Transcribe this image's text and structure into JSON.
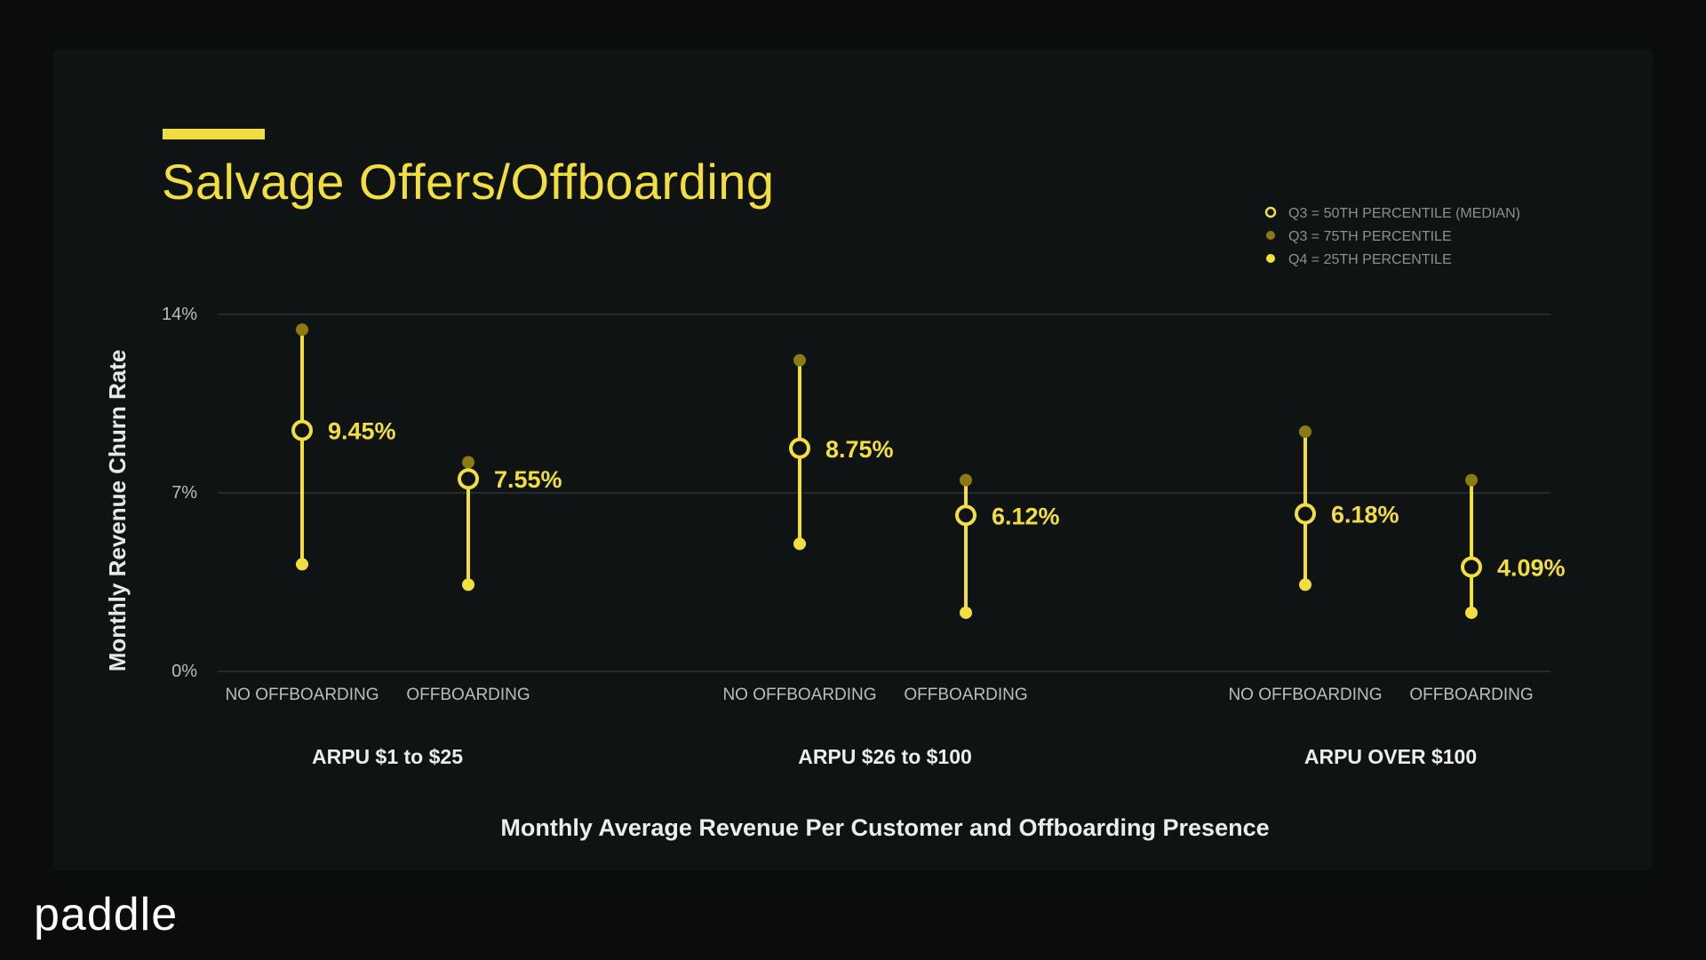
{
  "header": {
    "title": "Salvage Offers/Offboarding"
  },
  "brand": {
    "logo_text": "paddle"
  },
  "colors": {
    "accent": "#f2df3f",
    "q75": "#8c7a12",
    "grid": "#252a2a",
    "axis_text": "#bdbdbd",
    "background": "#0f1313"
  },
  "chart_data": {
    "type": "range-dot",
    "title": "Salvage Offers/Offboarding",
    "xlabel": "Monthly Average Revenue Per Customer and Offboarding Presence",
    "ylabel": "Monthly Revenue Churn Rate",
    "ylim": [
      0,
      14
    ],
    "yticks": [
      {
        "value": 0,
        "label": "0%"
      },
      {
        "value": 7,
        "label": "7%"
      },
      {
        "value": 14,
        "label": "14%"
      }
    ],
    "grid": true,
    "legend_position": "top-right",
    "legend": [
      {
        "label": "Q3 = 50TH PERCENTILE (MEDIAN)",
        "marker": "ring"
      },
      {
        "label": "Q3 = 75TH PERCENTILE",
        "marker": "dark-dot"
      },
      {
        "label": "Q4 = 25TH PERCENTILE",
        "marker": "dot"
      }
    ],
    "groups": [
      {
        "name": "ARPU $1 to $25",
        "items": [
          {
            "label": "NO OFFBOARDING",
            "median": 9.45,
            "median_label": "9.45%",
            "p75": 13.4,
            "p25": 4.2
          },
          {
            "label": "OFFBOARDING",
            "median": 7.55,
            "median_label": "7.55%",
            "p75": 8.2,
            "p25": 3.4
          }
        ]
      },
      {
        "name": "ARPU $26 to $100",
        "items": [
          {
            "label": "NO OFFBOARDING",
            "median": 8.75,
            "median_label": "8.75%",
            "p75": 12.2,
            "p25": 5.0
          },
          {
            "label": "OFFBOARDING",
            "median": 6.12,
            "median_label": "6.12%",
            "p75": 7.5,
            "p25": 2.3
          }
        ]
      },
      {
        "name": "ARPU OVER $100",
        "items": [
          {
            "label": "NO OFFBOARDING",
            "median": 6.18,
            "median_label": "6.18%",
            "p75": 9.4,
            "p25": 3.4
          },
          {
            "label": "OFFBOARDING",
            "median": 4.09,
            "median_label": "4.09%",
            "p75": 7.5,
            "p25": 2.3
          }
        ]
      }
    ]
  }
}
